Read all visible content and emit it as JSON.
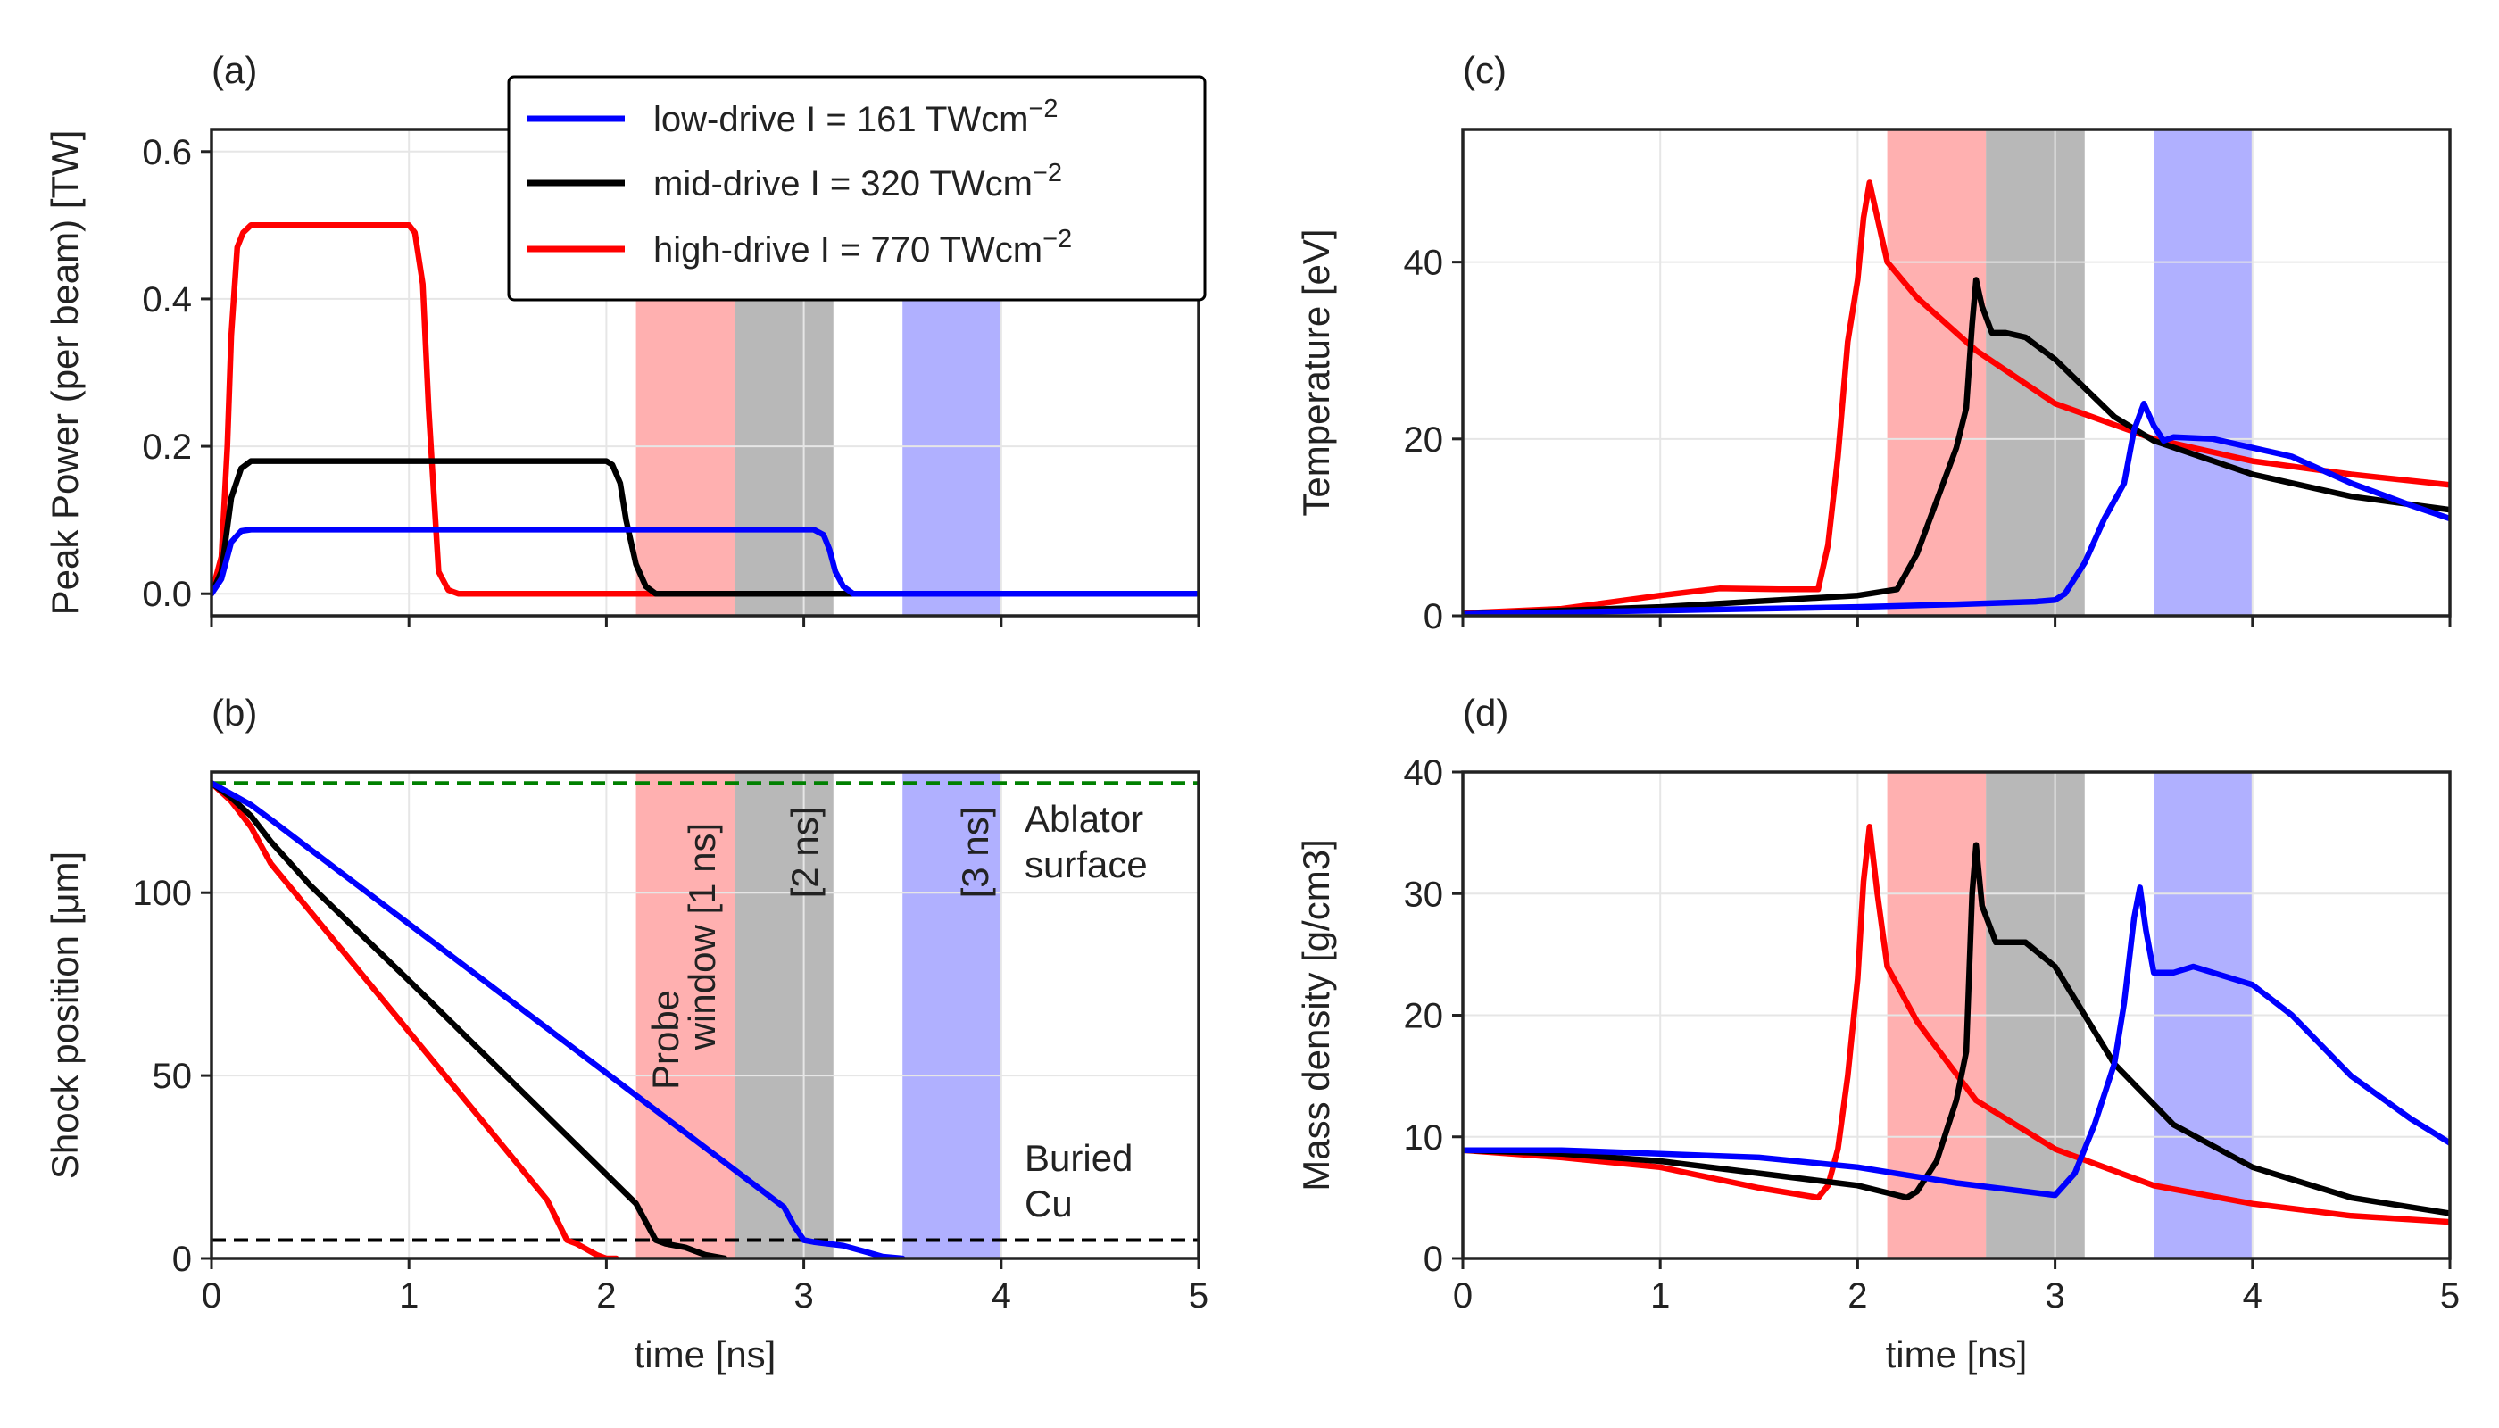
{
  "colors": {
    "low": "#0000ff",
    "mid": "#000000",
    "high": "#ff0000",
    "ablator": "#008000",
    "band_red": "#ff8080",
    "band_grey": "#8c8c8c",
    "band_blue": "#8080ff",
    "grid": "#e6e6e6",
    "axes": "#222222"
  },
  "legend": {
    "entries": [
      {
        "series": "low",
        "label": "low-drive I = 161 TWcm",
        "sup": "−2"
      },
      {
        "series": "mid",
        "label": "mid-drive I = 320 TWcm",
        "sup": "−2"
      },
      {
        "series": "high",
        "label": "high-drive I = 770 TWcm",
        "sup": "−2"
      }
    ]
  },
  "annotations": {
    "probe_line1": "Probe",
    "probe_line2": "window [1 ns]",
    "window_2ns": "[2 ns]",
    "window_3ns": "[3 ns]",
    "ablator_line1": "Ablator",
    "ablator_line2": "surface",
    "cu_line1": "Buried",
    "cu_line2": "Cu"
  },
  "chart_data": [
    {
      "id": "a",
      "panel_label": "(a)",
      "type": "line",
      "title": "",
      "xlabel": "",
      "ylabel": "Peak Power (per beam) [TW]",
      "xlim": [
        0,
        5
      ],
      "ylim": [
        -0.03,
        0.63
      ],
      "xticks": [
        0,
        1,
        2,
        3,
        4,
        5
      ],
      "show_x_ticklabels": false,
      "yticks": [
        0.0,
        0.2,
        0.4,
        0.6
      ],
      "ytick_labels": [
        "0.0",
        "0.2",
        "0.4",
        "0.6"
      ],
      "grid": true,
      "legend": "top-right",
      "bands": [
        {
          "x0": 2.15,
          "x1": 2.65,
          "color": "red"
        },
        {
          "x0": 2.65,
          "x1": 3.15,
          "color": "grey"
        },
        {
          "x0": 3.5,
          "x1": 4.0,
          "color": "blue"
        }
      ],
      "hlines": [],
      "series": [
        {
          "name": "high",
          "x": [
            0,
            0.05,
            0.08,
            0.1,
            0.13,
            0.16,
            0.2,
            1.0,
            1.03,
            1.07,
            1.1,
            1.15,
            1.2,
            1.25,
            5.0
          ],
          "y": [
            0,
            0.05,
            0.2,
            0.35,
            0.47,
            0.49,
            0.5,
            0.5,
            0.49,
            0.42,
            0.25,
            0.03,
            0.005,
            0,
            0
          ]
        },
        {
          "name": "mid",
          "x": [
            0,
            0.05,
            0.1,
            0.15,
            0.2,
            2.0,
            2.03,
            2.07,
            2.1,
            2.15,
            2.2,
            2.25,
            5.0
          ],
          "y": [
            0,
            0.03,
            0.13,
            0.17,
            0.18,
            0.18,
            0.175,
            0.15,
            0.1,
            0.04,
            0.01,
            0,
            0
          ]
        },
        {
          "name": "low",
          "x": [
            0,
            0.05,
            0.1,
            0.15,
            0.2,
            3.05,
            3.1,
            3.13,
            3.16,
            3.2,
            3.25,
            5.0
          ],
          "y": [
            0,
            0.02,
            0.07,
            0.085,
            0.087,
            0.087,
            0.08,
            0.06,
            0.03,
            0.01,
            0,
            0
          ]
        }
      ]
    },
    {
      "id": "b",
      "panel_label": "(b)",
      "type": "line",
      "title": "",
      "xlabel": "time [ns]",
      "ylabel": "Shock position [μm]",
      "xlim": [
        0,
        5
      ],
      "ylim": [
        0,
        133
      ],
      "xticks": [
        0,
        1,
        2,
        3,
        4,
        5
      ],
      "show_x_ticklabels": true,
      "yticks": [
        0,
        50,
        100
      ],
      "ytick_labels": [
        "0",
        "50",
        "100"
      ],
      "grid": true,
      "bands": [
        {
          "x0": 2.15,
          "x1": 2.65,
          "color": "red"
        },
        {
          "x0": 2.65,
          "x1": 3.15,
          "color": "grey"
        },
        {
          "x0": 3.5,
          "x1": 4.0,
          "color": "blue"
        }
      ],
      "hlines": [
        {
          "y": 130,
          "color": "ablator",
          "label": "Ablator surface"
        },
        {
          "y": 5,
          "color": "mid",
          "label": "Buried Cu"
        }
      ],
      "series": [
        {
          "name": "high",
          "x": [
            0,
            0.1,
            0.2,
            0.3,
            1.7,
            1.8,
            1.85,
            1.95,
            2.0,
            2.05
          ],
          "y": [
            130,
            125,
            118,
            108,
            16,
            5,
            4,
            1,
            0,
            0
          ]
        },
        {
          "name": "mid",
          "x": [
            0,
            0.1,
            0.2,
            0.3,
            0.5,
            1.0,
            2.15,
            2.2,
            2.25,
            2.3,
            2.4,
            2.5,
            2.6
          ],
          "y": [
            130,
            126,
            121,
            114,
            102,
            76,
            15,
            10,
            5,
            4,
            3,
            1,
            0
          ]
        },
        {
          "name": "low",
          "x": [
            0,
            0.2,
            0.3,
            2.9,
            2.95,
            3.0,
            3.05,
            3.2,
            3.3,
            3.4,
            3.5
          ],
          "y": [
            130,
            124,
            120,
            14,
            9,
            5,
            4.5,
            3.5,
            2,
            0.5,
            0
          ]
        }
      ]
    },
    {
      "id": "c",
      "panel_label": "(c)",
      "type": "line",
      "title": "",
      "xlabel": "",
      "ylabel": "Temperature [eV]",
      "xlim": [
        0,
        5
      ],
      "ylim": [
        0,
        55
      ],
      "xticks": [
        0,
        1,
        2,
        3,
        4,
        5
      ],
      "show_x_ticklabels": false,
      "yticks": [
        0,
        20,
        40
      ],
      "ytick_labels": [
        "0",
        "20",
        "40"
      ],
      "grid": true,
      "bands": [
        {
          "x0": 2.15,
          "x1": 2.65,
          "color": "red"
        },
        {
          "x0": 2.65,
          "x1": 3.15,
          "color": "grey"
        },
        {
          "x0": 3.5,
          "x1": 4.0,
          "color": "blue"
        }
      ],
      "hlines": [],
      "series": [
        {
          "name": "high",
          "x": [
            0,
            0.5,
            1.0,
            1.3,
            1.6,
            1.8,
            1.85,
            1.9,
            1.95,
            2.0,
            2.03,
            2.06,
            2.1,
            2.15,
            2.3,
            2.6,
            3.0,
            3.5,
            4.0,
            4.5,
            5.0
          ],
          "y": [
            0.3,
            0.8,
            2.3,
            3.1,
            3.0,
            3.0,
            8,
            18,
            31,
            38,
            45,
            49,
            45,
            40,
            36,
            30,
            24,
            20,
            17.5,
            16,
            14.8
          ]
        },
        {
          "name": "mid",
          "x": [
            0,
            1.0,
            2.0,
            2.2,
            2.3,
            2.4,
            2.5,
            2.55,
            2.58,
            2.6,
            2.63,
            2.68,
            2.75,
            2.85,
            3.0,
            3.3,
            3.5,
            4.0,
            4.5,
            5.0
          ],
          "y": [
            0.2,
            1.0,
            2.3,
            3.0,
            7,
            13,
            19,
            23.5,
            33,
            38,
            35,
            32,
            32,
            31.5,
            29,
            22.5,
            19.8,
            16,
            13.5,
            12
          ]
        },
        {
          "name": "low",
          "x": [
            0,
            1.0,
            2.0,
            2.5,
            2.9,
            3.0,
            3.05,
            3.15,
            3.25,
            3.35,
            3.4,
            3.45,
            3.5,
            3.55,
            3.6,
            3.8,
            4.0,
            4.2,
            4.5,
            4.8,
            5.0
          ],
          "y": [
            0.2,
            0.6,
            1.0,
            1.3,
            1.6,
            1.8,
            2.5,
            6,
            11,
            15,
            21,
            24,
            21.5,
            19.8,
            20.2,
            20,
            19,
            18,
            15,
            12.5,
            11
          ]
        }
      ]
    },
    {
      "id": "d",
      "panel_label": "(d)",
      "type": "line",
      "title": "",
      "xlabel": "time [ns]",
      "ylabel": "Mass density [g/cm3]",
      "xlim": [
        0,
        5
      ],
      "ylim": [
        0,
        40
      ],
      "xticks": [
        0,
        1,
        2,
        3,
        4,
        5
      ],
      "show_x_ticklabels": true,
      "yticks": [
        0,
        10,
        20,
        30,
        40
      ],
      "ytick_labels": [
        "0",
        "10",
        "20",
        "30",
        "40"
      ],
      "grid": true,
      "bands": [
        {
          "x0": 2.15,
          "x1": 2.65,
          "color": "red"
        },
        {
          "x0": 2.65,
          "x1": 3.15,
          "color": "grey"
        },
        {
          "x0": 3.5,
          "x1": 4.0,
          "color": "blue"
        }
      ],
      "hlines": [],
      "series": [
        {
          "name": "high",
          "x": [
            0,
            0.5,
            1.0,
            1.5,
            1.8,
            1.85,
            1.9,
            1.95,
            2.0,
            2.03,
            2.06,
            2.1,
            2.15,
            2.3,
            2.6,
            3.0,
            3.5,
            4.0,
            4.5,
            5.0
          ],
          "y": [
            8.9,
            8.3,
            7.5,
            5.8,
            5.0,
            6,
            9,
            15,
            23,
            31,
            35.5,
            30,
            24,
            19.5,
            13,
            9,
            6,
            4.5,
            3.5,
            3.0
          ]
        },
        {
          "name": "mid",
          "x": [
            0,
            0.5,
            1.0,
            1.5,
            2.0,
            2.25,
            2.3,
            2.4,
            2.5,
            2.55,
            2.58,
            2.6,
            2.63,
            2.7,
            2.75,
            2.85,
            3.0,
            3.3,
            3.6,
            4.0,
            4.5,
            5.0
          ],
          "y": [
            8.9,
            8.6,
            8.0,
            7.0,
            6.0,
            5.0,
            5.5,
            8,
            13,
            17,
            30,
            34,
            29,
            26,
            26,
            26,
            24,
            16,
            11,
            7.5,
            5.0,
            3.7
          ]
        },
        {
          "name": "low",
          "x": [
            0,
            0.5,
            1.0,
            1.5,
            2.0,
            2.5,
            3.0,
            3.1,
            3.2,
            3.3,
            3.35,
            3.4,
            3.43,
            3.46,
            3.5,
            3.55,
            3.6,
            3.7,
            3.8,
            4.0,
            4.2,
            4.5,
            4.8,
            5.0
          ],
          "y": [
            8.9,
            8.9,
            8.6,
            8.3,
            7.5,
            6.2,
            5.2,
            7,
            11,
            16,
            21,
            28,
            30.5,
            27,
            23.5,
            23.5,
            23.5,
            24,
            23.5,
            22.5,
            20,
            15,
            11.5,
            9.5
          ]
        }
      ]
    }
  ]
}
